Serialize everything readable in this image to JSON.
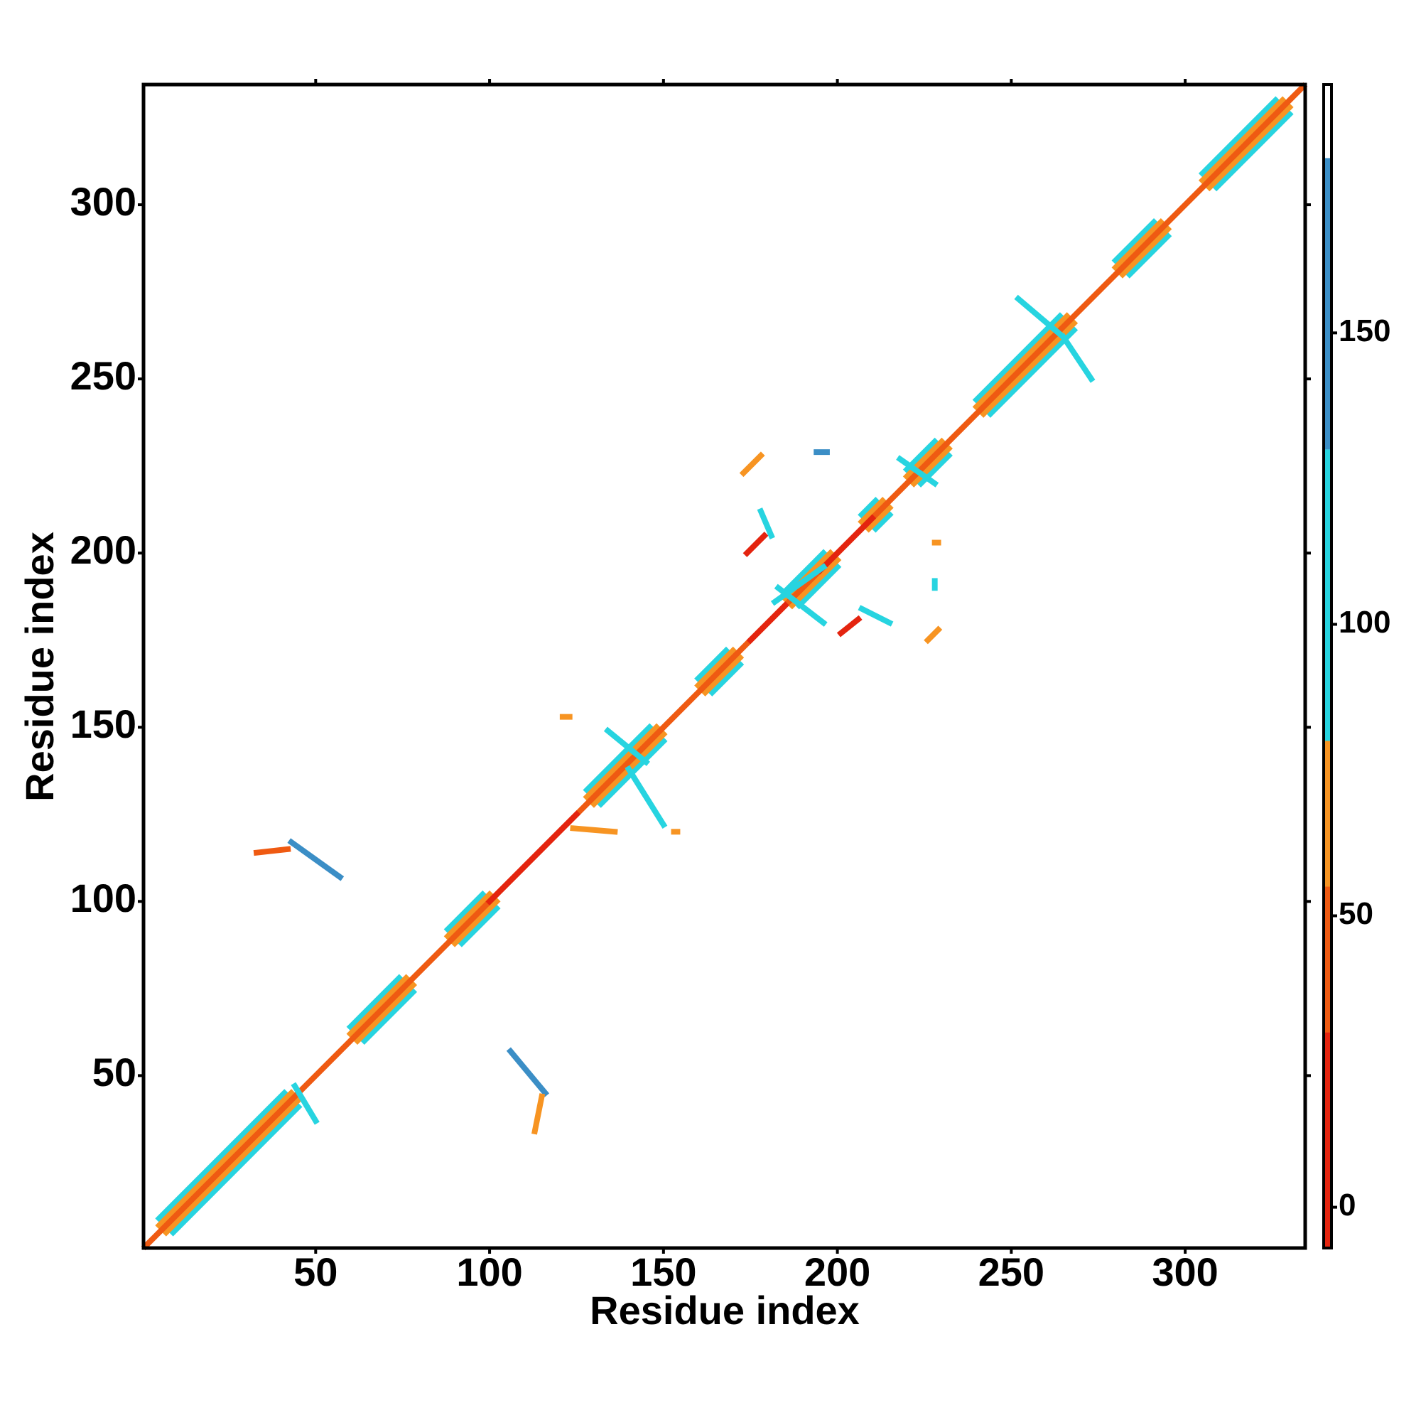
{
  "chart_data": {
    "type": "segment-map",
    "xlabel": "Residue index",
    "ylabel": "Residue index",
    "xlim": [
      0.5,
      334.5
    ],
    "ylim": [
      0.5,
      334.5
    ],
    "xticks": [
      50,
      100,
      150,
      200,
      250,
      300
    ],
    "yticks": [
      50,
      100,
      150,
      200,
      250,
      300
    ],
    "colorbar": {
      "lim": [
        -7,
        192.6
      ],
      "bounds": [
        -7,
        30,
        55,
        80,
        130,
        180,
        192.6
      ],
      "colors": [
        "#e4240f",
        "#ef5a12",
        "#f79422",
        "#27d4e0",
        "#3b8ec6",
        "#ffffff"
      ],
      "ticks": [
        0,
        50,
        100,
        150
      ]
    },
    "segments": [
      [
        5,
        9,
        41,
        45,
        100
      ],
      [
        9,
        5,
        45,
        41,
        100
      ],
      [
        5,
        7,
        43,
        45,
        65
      ],
      [
        7,
        5,
        45,
        43,
        65
      ],
      [
        60,
        64,
        74,
        78,
        100
      ],
      [
        64,
        60,
        78,
        74,
        100
      ],
      [
        60,
        62,
        76,
        78,
        65
      ],
      [
        62,
        60,
        78,
        76,
        65
      ],
      [
        88,
        92,
        98,
        102,
        100
      ],
      [
        92,
        88,
        102,
        98,
        100
      ],
      [
        88,
        90,
        100,
        102,
        65
      ],
      [
        90,
        88,
        102,
        100,
        65
      ],
      [
        128,
        132,
        146,
        150,
        100
      ],
      [
        132,
        128,
        150,
        146,
        100
      ],
      [
        128,
        130,
        148,
        150,
        65
      ],
      [
        130,
        128,
        150,
        148,
        65
      ],
      [
        160,
        164,
        168,
        172,
        100
      ],
      [
        164,
        160,
        172,
        168,
        100
      ],
      [
        160,
        162,
        170,
        172,
        65
      ],
      [
        162,
        160,
        172,
        170,
        65
      ],
      [
        185,
        189,
        196,
        200,
        100
      ],
      [
        189,
        185,
        200,
        196,
        100
      ],
      [
        185,
        187,
        198,
        200,
        65
      ],
      [
        187,
        185,
        200,
        198,
        65
      ],
      [
        207,
        211,
        211,
        215,
        100
      ],
      [
        211,
        207,
        215,
        211,
        100
      ],
      [
        207,
        209,
        213,
        215,
        65
      ],
      [
        209,
        207,
        215,
        213,
        65
      ],
      [
        220,
        224,
        228,
        232,
        100
      ],
      [
        224,
        220,
        232,
        228,
        100
      ],
      [
        220,
        222,
        230,
        232,
        65
      ],
      [
        222,
        220,
        232,
        230,
        65
      ],
      [
        240,
        244,
        264,
        268,
        100
      ],
      [
        244,
        240,
        268,
        264,
        100
      ],
      [
        240,
        242,
        266,
        268,
        65
      ],
      [
        242,
        240,
        268,
        266,
        65
      ],
      [
        280,
        284,
        291,
        295,
        100
      ],
      [
        284,
        280,
        295,
        291,
        100
      ],
      [
        280,
        282,
        293,
        295,
        65
      ],
      [
        282,
        280,
        295,
        293,
        65
      ],
      [
        305,
        309,
        326,
        330,
        100
      ],
      [
        309,
        305,
        330,
        326,
        100
      ],
      [
        305,
        307,
        328,
        330,
        65
      ],
      [
        307,
        305,
        330,
        328,
        65
      ],
      [
        1,
        1,
        334,
        334,
        40
      ],
      [
        100,
        100,
        125,
        125,
        10
      ],
      [
        175,
        175,
        185,
        185,
        10
      ],
      [
        195,
        195,
        210,
        210,
        10
      ],
      [
        33,
        114,
        42,
        115,
        40
      ],
      [
        43,
        117,
        57,
        107,
        150
      ],
      [
        106,
        57,
        116,
        45,
        150
      ],
      [
        115,
        44,
        113,
        34,
        60
      ],
      [
        121,
        153,
        123,
        153,
        55
      ],
      [
        134,
        149,
        145,
        140,
        100
      ],
      [
        140,
        138,
        150,
        122,
        100
      ],
      [
        153,
        120,
        154,
        120,
        55
      ],
      [
        124,
        121,
        136,
        120,
        60
      ],
      [
        174,
        200,
        179,
        205,
        20
      ],
      [
        178,
        212,
        181,
        205,
        100
      ],
      [
        173,
        223,
        178,
        228,
        55
      ],
      [
        201,
        177,
        206,
        181,
        20
      ],
      [
        207,
        184,
        215,
        180,
        100
      ],
      [
        226,
        175,
        229,
        178,
        55
      ],
      [
        252,
        273,
        265,
        262,
        100
      ],
      [
        265,
        262,
        273,
        250,
        100
      ],
      [
        218,
        227,
        228,
        220,
        100
      ],
      [
        182,
        186,
        196,
        196,
        100
      ],
      [
        183,
        190,
        196,
        180,
        100
      ],
      [
        194,
        229,
        197,
        229,
        140
      ],
      [
        228,
        203,
        229,
        203,
        60
      ],
      [
        228,
        192,
        228,
        190,
        100
      ],
      [
        44,
        47,
        50,
        37,
        100
      ]
    ]
  }
}
